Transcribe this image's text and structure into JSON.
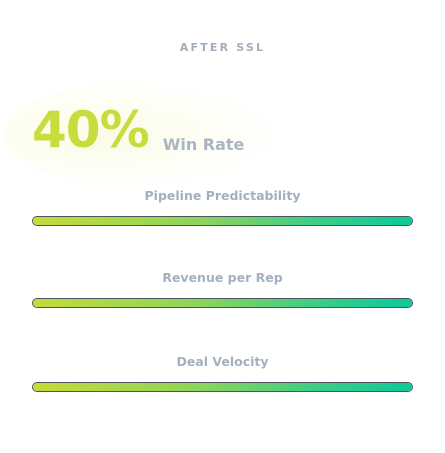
{
  "header": {
    "title": "AFTER SSL"
  },
  "highlight": {
    "value": "40%",
    "label": "Win Rate"
  },
  "metrics": [
    {
      "label": "Pipeline Predictability",
      "progress": 1.0
    },
    {
      "label": "Revenue per Rep",
      "progress": 1.0
    },
    {
      "label": "Deal Velocity",
      "progress": 1.0
    }
  ],
  "colors": {
    "accent": "#c9dc3d",
    "gradient_start": "#c5db3a",
    "gradient_end": "#0bc99a",
    "muted_text": "#a5b0bf"
  }
}
